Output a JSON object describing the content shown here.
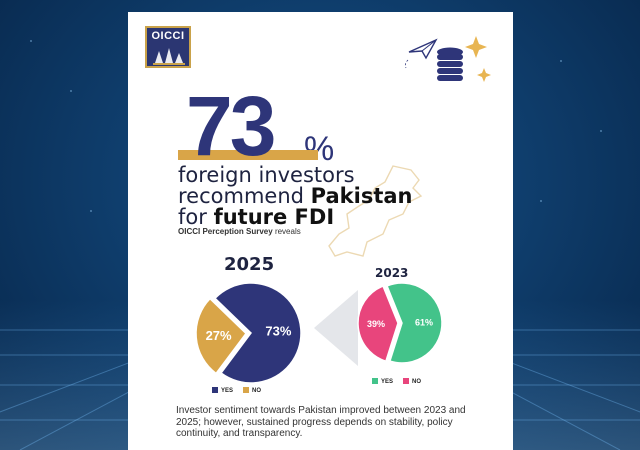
{
  "colors": {
    "navy": "#2e3579",
    "gold": "#d9a548",
    "green": "#43c38a",
    "pink": "#e8457c"
  },
  "logo": {
    "text": "OICCI"
  },
  "headline": {
    "number": "73",
    "percent": "%",
    "line1": "foreign investors",
    "line2_pre": "recommend",
    "line2_bold": "Pakistan",
    "line3_pre": "for",
    "line3_bold": "future FDI",
    "source_bold": "OICCI Perception Survey",
    "source_rest": "reveals"
  },
  "chart_data": [
    {
      "type": "pie",
      "title": "2025",
      "categories": [
        "YES",
        "NO"
      ],
      "values": [
        73,
        27
      ],
      "labels": [
        "73%",
        "27%"
      ],
      "colors": [
        "#2e3579",
        "#d9a548"
      ]
    },
    {
      "type": "pie",
      "title": "2023",
      "categories": [
        "YES",
        "NO"
      ],
      "values": [
        61,
        39
      ],
      "labels": [
        "61%",
        "39%"
      ],
      "colors": [
        "#43c38a",
        "#e8457c"
      ]
    }
  ],
  "footer": "Investor sentiment towards Pakistan improved between 2023 and 2025; however, sustained progress depends on stability, policy continuity, and transparency.",
  "icons": [
    "paper-plane-icon",
    "coin-stack-icon",
    "sparkle-icon",
    "pakistan-map-outline",
    "arrow-left-icon"
  ]
}
